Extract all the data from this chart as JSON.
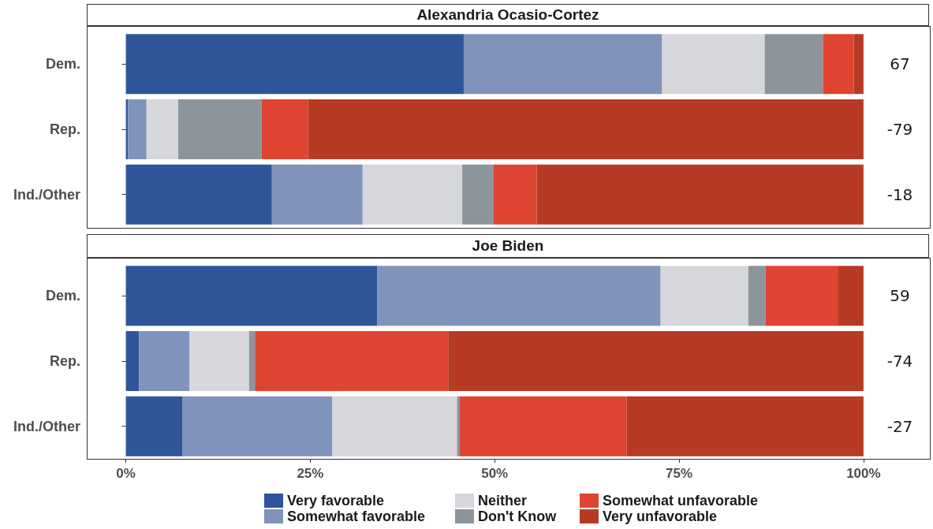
{
  "chart_data": [
    {
      "type": "bar",
      "orientation": "horizontal",
      "stacked": true,
      "title": "Alexandria Ocasio-Cortez",
      "categories": [
        "Dem.",
        "Rep.",
        "Ind./Other"
      ],
      "xlim": [
        -5.3,
        109.1
      ],
      "tick_labels": "y",
      "grid": false,
      "legend": false,
      "annotations": [
        "67",
        "-79",
        "-18"
      ],
      "series": [
        {
          "color": "#2e5599",
          "values": [
            45.8,
            0.3,
            19.8
          ]
        },
        {
          "color": "#7f93bb",
          "values": [
            26.9,
            2.5,
            12.3
          ]
        },
        {
          "color": "#d6d7db",
          "values": [
            13.9,
            4.3,
            13.5
          ]
        },
        {
          "color": "#8c959c",
          "values": [
            7.9,
            11.3,
            4.2
          ]
        },
        {
          "color": "#de4431",
          "values": [
            4.2,
            6.3,
            5.9
          ]
        },
        {
          "color": "#b73a25",
          "values": [
            1.3,
            75.3,
            44.3
          ]
        }
      ]
    },
    {
      "type": "bar",
      "orientation": "horizontal",
      "stacked": true,
      "title": "Joe Biden",
      "categories": [
        "Dem.",
        "Rep.",
        "Ind./Other"
      ],
      "xlim": [
        -5.3,
        109.1
      ],
      "xticks": [
        {
          "value": 0,
          "label": "0%"
        },
        {
          "value": 25,
          "label": "25%"
        },
        {
          "value": 50,
          "label": "50%"
        },
        {
          "value": 75,
          "label": "75%"
        },
        {
          "value": 100,
          "label": "100%"
        }
      ],
      "grid": false,
      "legend": "bottom",
      "annotations": [
        "59",
        "-74",
        "-27"
      ],
      "series": [
        {
          "name": "Very favorable",
          "color": "#2e5599",
          "values": [
            34.1,
            1.8,
            7.7
          ]
        },
        {
          "name": "Somewhat favorable",
          "color": "#7f93bb",
          "values": [
            38.4,
            6.8,
            20.3
          ]
        },
        {
          "name": "Neither",
          "color": "#d6d7db",
          "values": [
            11.9,
            8.1,
            16.9
          ]
        },
        {
          "name": "Don't Know",
          "color": "#8c959c",
          "values": [
            2.3,
            0.8,
            0.3
          ]
        },
        {
          "name": "Somewhat unfavorable",
          "color": "#de4431",
          "values": [
            9.8,
            26.2,
            22.7
          ]
        },
        {
          "name": "Very unfavorable",
          "color": "#b73a25",
          "values": [
            3.5,
            56.3,
            32.1
          ]
        }
      ]
    }
  ]
}
